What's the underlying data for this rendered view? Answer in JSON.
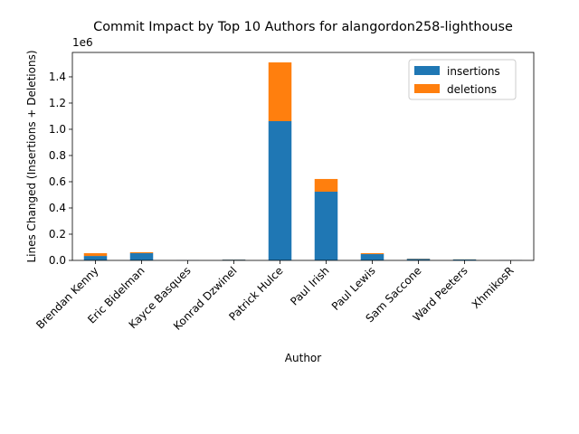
{
  "chart_data": {
    "type": "stacked_bar",
    "title": "Commit Impact by Top 10 Authors for alangordon258-lighthouse",
    "x_label": "Author",
    "y_label": "Lines Changed (Insertions + Deletions)",
    "y_offset_label": "1e6",
    "categories": [
      "Brendan Kenny",
      "Eric Bidelman",
      "Kayce Basques",
      "Konrad Dzwinel",
      "Patrick Hulce",
      "Paul Irish",
      "Paul Lewis",
      "Sam Saccone",
      "Ward Peeters",
      "XhmikosR"
    ],
    "series": [
      {
        "name": "insertions",
        "color": "#1f77b4",
        "values": [
          34000,
          55000,
          1000,
          6000,
          1062000,
          524000,
          48000,
          12000,
          7000,
          1500
        ]
      },
      {
        "name": "deletions",
        "color": "#ff7f0e",
        "values": [
          21000,
          7000,
          200,
          1000,
          448000,
          97000,
          7000,
          2000,
          1000,
          500
        ]
      }
    ],
    "ylim": [
      0,
      1586000
    ],
    "yticks": [
      {
        "value": 0,
        "label": "0.0"
      },
      {
        "value": 200000,
        "label": "0.2"
      },
      {
        "value": 400000,
        "label": "0.4"
      },
      {
        "value": 600000,
        "label": "0.6"
      },
      {
        "value": 800000,
        "label": "0.8"
      },
      {
        "value": 1000000,
        "label": "1.0"
      },
      {
        "value": 1200000,
        "label": "1.2"
      },
      {
        "value": 1400000,
        "label": "1.4"
      }
    ],
    "grid": false,
    "legend": "upper right"
  }
}
